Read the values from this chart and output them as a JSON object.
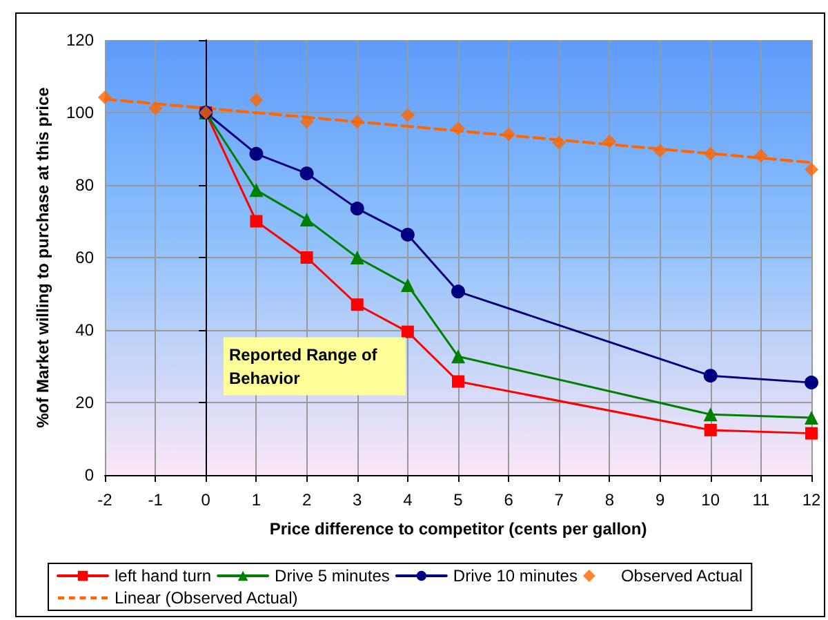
{
  "chart_data": {
    "type": "line",
    "xlabel": "Price difference to competitor (cents per gallon)",
    "ylabel": "%of Market willing to purchase at this price",
    "annotations": [
      "Reported Range of Behavior"
    ],
    "xlim": [
      -2,
      12
    ],
    "xticks": [
      -2,
      -1,
      0,
      1,
      2,
      3,
      4,
      5,
      6,
      7,
      8,
      9,
      10,
      11,
      12
    ],
    "ylim": [
      0,
      120
    ],
    "yticks": [
      0,
      20,
      40,
      60,
      80,
      100,
      120
    ],
    "grid": true,
    "legend": "bottom",
    "series": [
      {
        "name": "left hand turn",
        "color": "#ff0000",
        "marker": "square",
        "x": [
          0,
          1,
          2,
          3,
          4,
          5,
          10,
          12
        ],
        "values": [
          100,
          70,
          60,
          47,
          39.5,
          25.8,
          12.4,
          11.5
        ]
      },
      {
        "name": "Drive 5 minutes",
        "color": "#008000",
        "marker": "triangle",
        "x": [
          0,
          1,
          2,
          3,
          4,
          5,
          10,
          12
        ],
        "values": [
          100,
          78.6,
          70.5,
          60,
          52.4,
          32.7,
          16.7,
          15.8
        ]
      },
      {
        "name": "Drive 10 minutes",
        "color": "#000080",
        "marker": "circle",
        "x": [
          0,
          1,
          2,
          3,
          4,
          5,
          10,
          12
        ],
        "values": [
          100,
          88.6,
          83.2,
          73.5,
          66.3,
          50.6,
          27.4,
          25.5
        ]
      },
      {
        "name": "Observed Actual",
        "type": "scatter",
        "color": "#ff6600",
        "marker": "diamond",
        "x": [
          -2,
          -1,
          0,
          1,
          2,
          3,
          4,
          5,
          6,
          7,
          8,
          9,
          10,
          11,
          12
        ],
        "values": [
          104.2,
          101.2,
          100,
          103.5,
          97.5,
          97.5,
          99.3,
          95.6,
          94,
          91.7,
          92,
          89.5,
          88.6,
          88.1,
          84.3
        ]
      },
      {
        "name": "Linear (Observed Actual)",
        "color": "#ff6600",
        "marker": "none",
        "line_style": "dashed",
        "x": [
          -2,
          12
        ],
        "values": [
          103.7,
          86.2
        ]
      }
    ]
  }
}
